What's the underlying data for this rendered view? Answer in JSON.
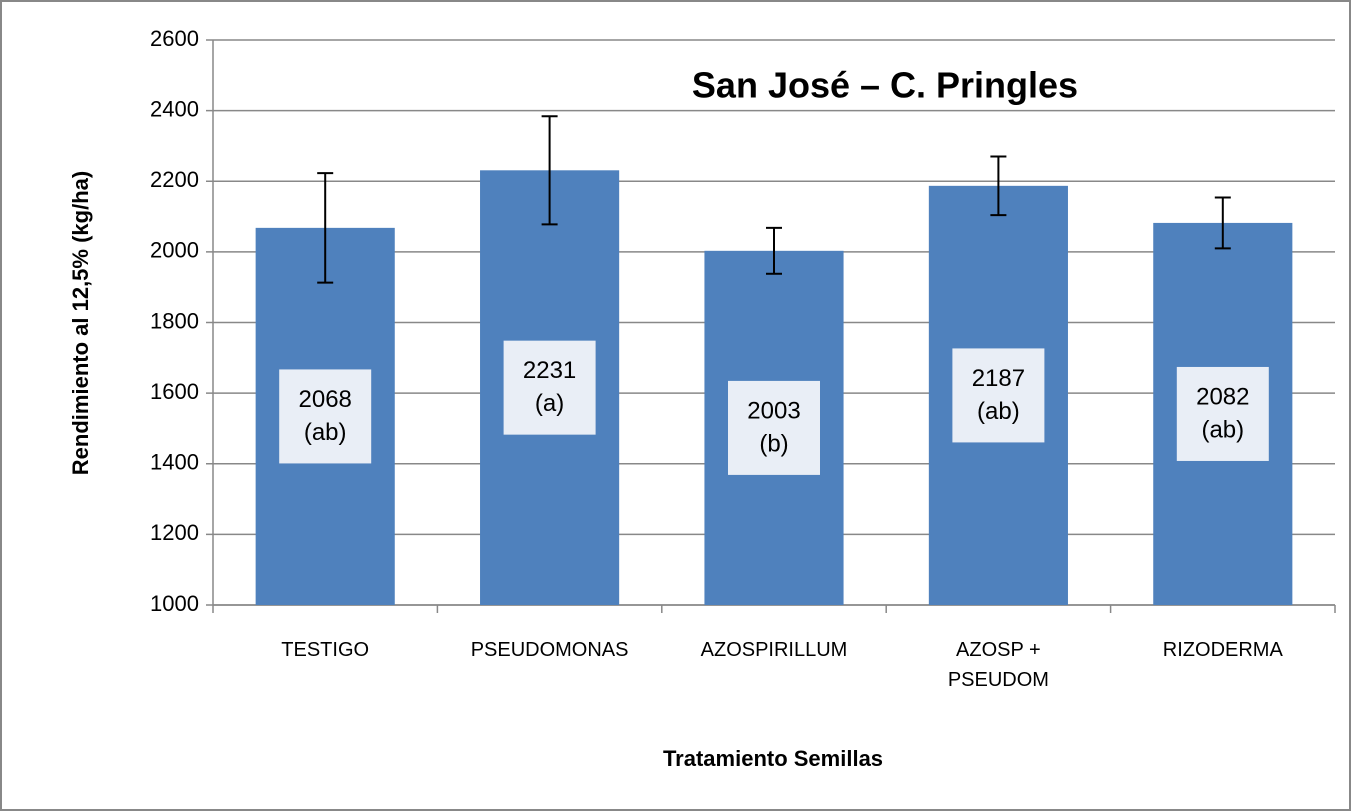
{
  "chart_data": {
    "type": "bar",
    "title": "San José – C. Pringles",
    "ylabel": "Rendimiento al 12,5% (kg/ha)",
    "xlabel": "Tratamiento Semillas",
    "categories": [
      "TESTIGO",
      "PSEUDOMONAS",
      "AZOSPIRILLUM",
      "AZOSP + PSEUDOM",
      "RIZODERMA"
    ],
    "values": [
      2068,
      2231,
      2003,
      2187,
      2082
    ],
    "errors": [
      155,
      153,
      65,
      83,
      72
    ],
    "letters": [
      "(ab)",
      "(a)",
      "(b)",
      "(ab)",
      "(ab)"
    ],
    "color": "#4f81bd",
    "ylim": [
      1000,
      2600
    ],
    "yticks": [
      1000,
      1200,
      1400,
      1600,
      1800,
      2000,
      2200,
      2400,
      2600
    ],
    "grid": true
  }
}
